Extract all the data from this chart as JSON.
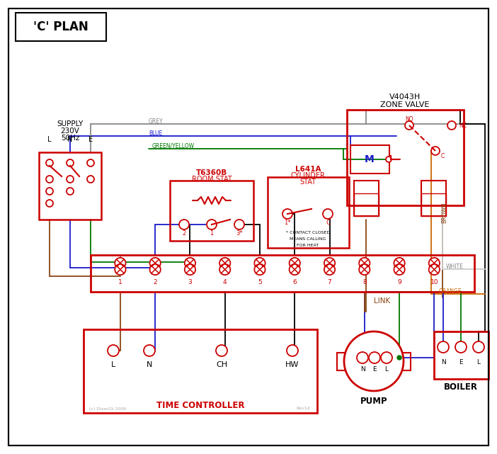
{
  "bg": "#ffffff",
  "red": "#cc0000",
  "blue": "#1a1acc",
  "green": "#007700",
  "brown": "#8b4513",
  "grey": "#888888",
  "orange": "#cc6600",
  "black": "#000000",
  "white_wire": "#bbbbbb",
  "title": "'C' PLAN",
  "supply_lines": [
    "SUPPLY",
    "230V",
    "50Hz"
  ],
  "lne": [
    "L",
    "N",
    "E"
  ],
  "terminal_nums": [
    "1",
    "2",
    "3",
    "4",
    "5",
    "6",
    "7",
    "8",
    "9",
    "10"
  ],
  "tc_terminals": [
    "L",
    "N",
    "CH",
    "HW"
  ],
  "nel": [
    "N",
    "E",
    "L"
  ],
  "zone_valve_title": [
    "V4043H",
    "ZONE VALVE"
  ],
  "room_stat_title": [
    "T6360B",
    "ROOM STAT"
  ],
  "cyl_stat_title": [
    "L641A",
    "CYLINDER",
    "STAT"
  ],
  "cyl_note": [
    "* CONTACT CLOSED",
    "MEANS CALLING",
    "FOR HEAT"
  ],
  "pump_label": "PUMP",
  "boiler_label": "BOILER",
  "tc_label": "TIME CONTROLLER",
  "link_label": "LINK",
  "wire_label_grey": "GREY",
  "wire_label_blue": "BLUE",
  "wire_label_gy": "GREEN/YELLOW",
  "wire_label_brown": "BROWN",
  "wire_label_white": "WHITE",
  "wire_label_orange": "ORANGE",
  "copyright": "(c) DiverGt 2009",
  "rev": "Rev1d"
}
